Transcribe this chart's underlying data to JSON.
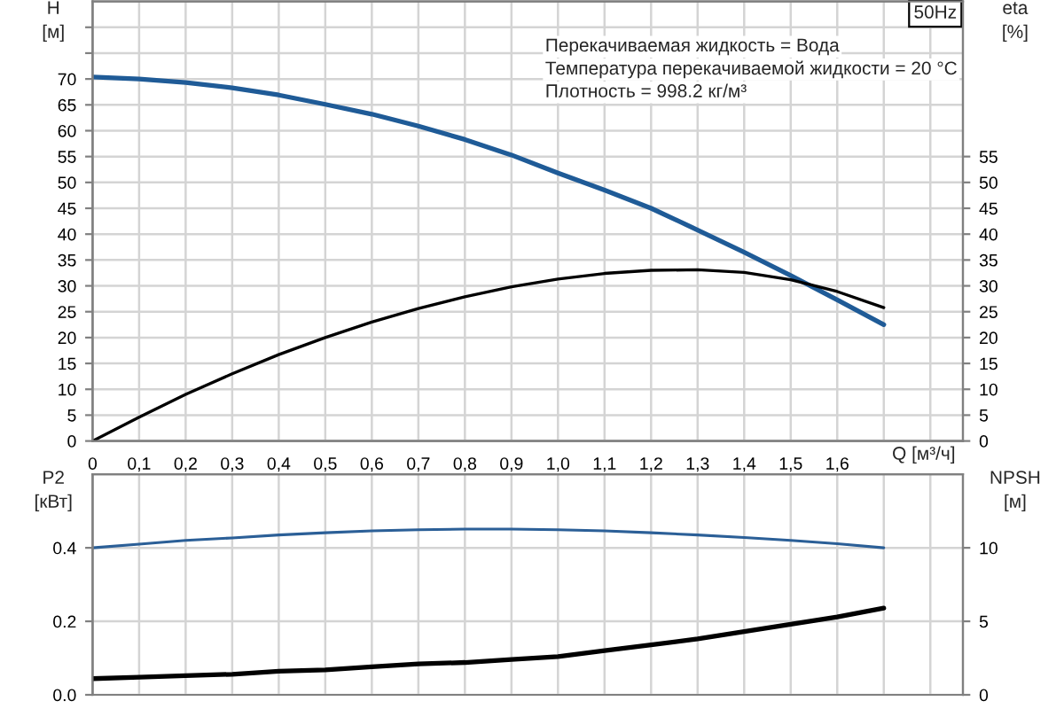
{
  "chart_data": [
    {
      "type": "line",
      "title": "50Hz",
      "xlabel": "Q [м³/ч]",
      "ylabel": "H\n[м]",
      "y2label": "eta\n[%]",
      "annotations": [
        "Перекачиваемая жидкость = Вода",
        "Температура перекачиваемой жидкости = 20 °C",
        "Плотность = 998.2 кг/м³"
      ],
      "x": [
        0,
        0.1,
        0.2,
        0.3,
        0.4,
        0.5,
        0.6,
        0.7,
        0.8,
        0.9,
        1.0,
        1.1,
        1.2,
        1.3,
        1.4,
        1.5,
        1.6,
        1.7
      ],
      "series": [
        {
          "color": "#1f5b97",
          "values": [
            70.4,
            70.0,
            69.3,
            68.3,
            66.9,
            65.1,
            63.2,
            60.9,
            58.3,
            55.3,
            51.8,
            48.5,
            45.0,
            40.8,
            36.5,
            32.0,
            27.3,
            22.5
          ]
        },
        {
          "color": "#000000",
          "axis": "y2",
          "values": [
            0,
            4.6,
            9.0,
            13.0,
            16.7,
            20.0,
            23.0,
            25.6,
            27.9,
            29.8,
            31.3,
            32.4,
            33.0,
            33.1,
            32.6,
            31.2,
            28.9,
            25.8
          ]
        }
      ],
      "xlim": [
        0,
        1.87
      ],
      "xticks": [
        {
          "value": 0,
          "label": "0"
        },
        {
          "value": 0.1,
          "label": "0,1"
        },
        {
          "value": 0.2,
          "label": "0,2"
        },
        {
          "value": 0.3,
          "label": "0,3"
        },
        {
          "value": 0.4,
          "label": "0,4"
        },
        {
          "value": 0.5,
          "label": "0,5"
        },
        {
          "value": 0.6,
          "label": "0,6"
        },
        {
          "value": 0.7,
          "label": "0,7"
        },
        {
          "value": 0.8,
          "label": "0,8"
        },
        {
          "value": 0.9,
          "label": "0,9"
        },
        {
          "value": 1.0,
          "label": "1,0"
        },
        {
          "value": 1.1,
          "label": "1,1"
        },
        {
          "value": 1.2,
          "label": "1,2"
        },
        {
          "value": 1.3,
          "label": "1,3"
        },
        {
          "value": 1.4,
          "label": "1,4"
        },
        {
          "value": 1.5,
          "label": "1,5"
        },
        {
          "value": 1.6,
          "label": "1,6"
        },
        {
          "value": 1.7,
          "label": null
        },
        {
          "value": 1.8,
          "label": null
        }
      ],
      "ylim": [
        0,
        85
      ],
      "yticks": [
        0,
        5,
        10,
        15,
        20,
        25,
        30,
        35,
        40,
        45,
        50,
        55,
        60,
        65,
        70,
        {
          "value": 75,
          "label": null
        },
        {
          "value": 80,
          "label": null
        }
      ],
      "y2lim": [
        0,
        85
      ],
      "y2ticks": [
        0,
        5,
        10,
        15,
        20,
        25,
        30,
        35,
        40,
        45,
        50,
        55
      ],
      "grid": true
    },
    {
      "type": "line",
      "ylabel": "P2\n[кВт]",
      "y2label": "NPSH\n[м]",
      "x": [
        0,
        0.1,
        0.2,
        0.3,
        0.4,
        0.5,
        0.6,
        0.7,
        0.8,
        0.9,
        1.0,
        1.1,
        1.2,
        1.3,
        1.4,
        1.5,
        1.6,
        1.7
      ],
      "series": [
        {
          "color": "#2b5f97",
          "values": [
            0.4,
            0.41,
            0.42,
            0.427,
            0.435,
            0.441,
            0.446,
            0.449,
            0.451,
            0.451,
            0.449,
            0.446,
            0.441,
            0.435,
            0.428,
            0.42,
            0.411,
            0.4
          ]
        },
        {
          "color": "#000000",
          "axis": "y2",
          "values": [
            1.1,
            1.2,
            1.3,
            1.4,
            1.6,
            1.7,
            1.9,
            2.1,
            2.2,
            2.4,
            2.6,
            3.0,
            3.4,
            3.8,
            4.3,
            4.8,
            5.3,
            5.9
          ]
        }
      ],
      "xlim": [
        0,
        1.87
      ],
      "xticks": [
        {
          "value": 0,
          "label": null
        },
        {
          "value": 0.1,
          "label": null
        },
        {
          "value": 0.2,
          "label": null
        },
        {
          "value": 0.3,
          "label": null
        },
        {
          "value": 0.4,
          "label": null
        },
        {
          "value": 0.5,
          "label": null
        },
        {
          "value": 0.6,
          "label": null
        },
        {
          "value": 0.7,
          "label": null
        },
        {
          "value": 0.8,
          "label": null
        },
        {
          "value": 0.9,
          "label": null
        },
        {
          "value": 1.0,
          "label": null
        },
        {
          "value": 1.1,
          "label": null
        },
        {
          "value": 1.2,
          "label": null
        },
        {
          "value": 1.3,
          "label": null
        },
        {
          "value": 1.4,
          "label": null
        },
        {
          "value": 1.5,
          "label": null
        },
        {
          "value": 1.6,
          "label": null
        },
        {
          "value": 1.7,
          "label": null
        },
        {
          "value": 1.8,
          "label": null
        }
      ],
      "ylim": [
        0,
        0.6
      ],
      "yticks": [
        {
          "value": 0,
          "label": "0.0"
        },
        0.2,
        0.4
      ],
      "y2lim": [
        0,
        15
      ],
      "y2ticks": [
        0,
        5,
        10
      ],
      "tick_labels": "y",
      "grid": true
    }
  ]
}
